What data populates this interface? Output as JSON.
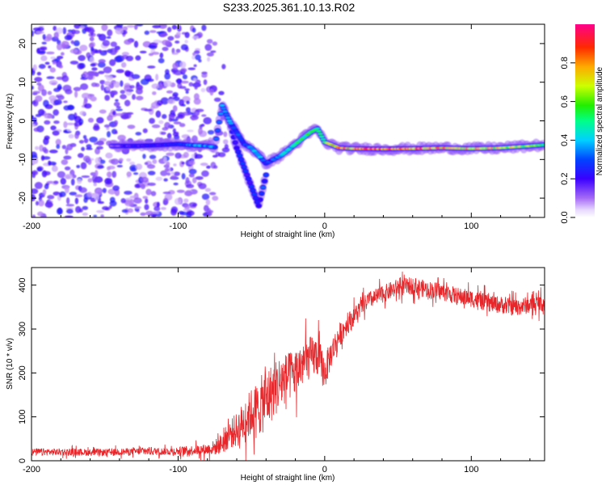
{
  "title": "S233.2025.361.10.13.R02",
  "colors": {
    "snr_line": "#e8262a",
    "background": "#ffffff",
    "axis": "#000000"
  },
  "chart_data": [
    {
      "type": "heatmap",
      "title": "S233.2025.361.10.13.R02",
      "xlabel": "Height of straight line (km)",
      "ylabel": "Frequency (Hz)",
      "xlim": [
        -200,
        150
      ],
      "ylim": [
        -25,
        25
      ],
      "xticks": [
        -200,
        -100,
        0,
        100
      ],
      "yticks": [
        -20,
        -10,
        0,
        10,
        20
      ],
      "colorbar": {
        "label": "Normalized spectral amplitude",
        "range": [
          0,
          1
        ],
        "ticks": [
          0.0,
          0.2,
          0.4,
          0.6,
          0.8
        ],
        "colormap": "rainbow"
      },
      "ridge": {
        "x": [
          -145,
          -130,
          -115,
          -100,
          -90,
          -80,
          -75,
          -70,
          -65,
          -60,
          -55,
          -50,
          -45,
          -40,
          -35,
          -30,
          -25,
          -20,
          -15,
          -10,
          -5,
          0,
          10,
          20,
          40,
          60,
          80,
          100,
          120,
          140,
          150
        ],
        "freq": [
          -6.5,
          -6.5,
          -6.3,
          -6.0,
          -6.3,
          -6.5,
          -6.8,
          4.0,
          0.0,
          -3.0,
          -6.0,
          -7.0,
          -9.0,
          -11.0,
          -10.0,
          -9.0,
          -7.5,
          -6.0,
          -4.5,
          -3.0,
          -2.0,
          -5.5,
          -7.0,
          -7.2,
          -7.3,
          -7.2,
          -7.0,
          -7.2,
          -7.0,
          -6.5,
          -6.2
        ],
        "amplitude": [
          0.15,
          0.25,
          0.25,
          0.3,
          0.4,
          0.45,
          0.4,
          0.45,
          0.4,
          0.35,
          0.3,
          0.4,
          0.45,
          0.3,
          0.35,
          0.45,
          0.5,
          0.55,
          0.6,
          0.6,
          0.55,
          0.75,
          0.9,
          0.95,
          1.0,
          1.0,
          0.95,
          0.85,
          0.85,
          0.7,
          0.6
        ]
      },
      "secondary_ridge": {
        "x": [
          -70,
          -65,
          -60,
          -55,
          -50,
          -45,
          -40
        ],
        "freq": [
          4.0,
          0.0,
          -7.0,
          -12.0,
          -17.0,
          -22.0,
          -14.0
        ],
        "amplitude": [
          0.35,
          0.3,
          0.3,
          0.3,
          0.3,
          0.3,
          0.35
        ]
      },
      "noise_region": {
        "x": [
          -200,
          -70
        ],
        "freq": [
          -25,
          25
        ],
        "amplitude": [
          0.05,
          0.25
        ]
      }
    },
    {
      "type": "line",
      "xlabel": "Height of straight line (km)",
      "ylabel": "SNR (10 * v/v)",
      "xlim": [
        -200,
        150
      ],
      "ylim": [
        0,
        440
      ],
      "xticks": [
        -200,
        -100,
        0,
        100
      ],
      "yticks": [
        0,
        100,
        200,
        300,
        400
      ],
      "series": [
        {
          "name": "SNR",
          "x": [
            -200,
            -190,
            -180,
            -170,
            -160,
            -150,
            -140,
            -130,
            -120,
            -110,
            -100,
            -90,
            -80,
            -75,
            -70,
            -65,
            -60,
            -55,
            -50,
            -45,
            -40,
            -35,
            -30,
            -25,
            -20,
            -15,
            -10,
            -5,
            0,
            5,
            10,
            15,
            20,
            25,
            30,
            40,
            50,
            60,
            70,
            80,
            90,
            100,
            110,
            120,
            130,
            140,
            150
          ],
          "envelope_mean": [
            20,
            20,
            20,
            20,
            19,
            19,
            20,
            21,
            22,
            21,
            22,
            24,
            26,
            30,
            40,
            60,
            70,
            90,
            110,
            120,
            140,
            160,
            180,
            190,
            200,
            220,
            235,
            240,
            200,
            250,
            285,
            310,
            330,
            350,
            365,
            380,
            395,
            398,
            390,
            385,
            375,
            370,
            360,
            355,
            350,
            355,
            360
          ],
          "noise_amplitude": [
            10,
            10,
            10,
            10,
            10,
            10,
            10,
            10,
            12,
            10,
            12,
            14,
            16,
            22,
            30,
            40,
            50,
            60,
            70,
            80,
            90,
            80,
            80,
            70,
            70,
            65,
            60,
            60,
            50,
            40,
            35,
            30,
            28,
            25,
            25,
            25,
            25,
            25,
            25,
            25,
            25,
            25,
            25,
            25,
            25,
            25,
            25
          ]
        }
      ]
    }
  ]
}
